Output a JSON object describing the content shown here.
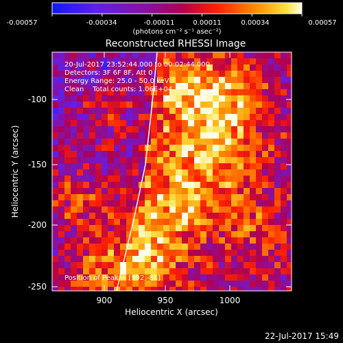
{
  "colorbar": {
    "ticks": [
      "-0.00057",
      "-0.00034",
      "-0.00011",
      "0.00011",
      "0.00034",
      "0.00057"
    ],
    "unit_label": "(photons cm⁻² s⁻¹ asec⁻²)"
  },
  "plot": {
    "title": "Reconstructed RHESSI Image",
    "xlabel": "Heliocentric X (arcsec)",
    "ylabel": "Heliocentric Y (arcsec)",
    "xticks": [
      "900",
      "950",
      "1000"
    ],
    "yticks": [
      "-100",
      "-150",
      "-200",
      "-250"
    ],
    "xlim": [
      862,
      1047
    ],
    "ylim": [
      -255,
      -73
    ]
  },
  "annotation": {
    "line1": "20-Jul-2017 23:52:44.000 to 00:02:44.000",
    "line2": "Detectors: 3F 6F 8F, Att 0",
    "line3": "Energy Range: 25.0 - 50.0 keV",
    "line4": "Clean    Total counts: 1.06E+04",
    "peak": "Position of Peak = [992,-81]"
  },
  "footer": {
    "timestamp": "22-Jul-2017 15:49"
  },
  "colors": {
    "background": "#000000",
    "low": "#2020d0",
    "mid": "#9000a0",
    "high": "#ff4000",
    "max": "#ffffe0"
  }
}
